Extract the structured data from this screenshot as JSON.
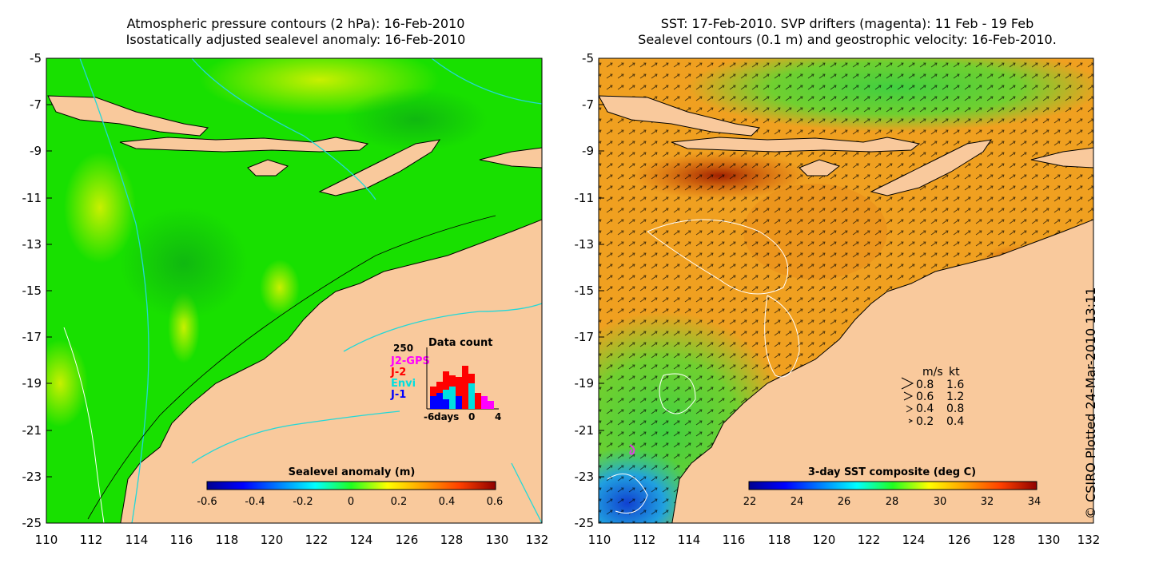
{
  "left_panel": {
    "title_line1": "Atmospheric pressure contours (2 hPa): 16-Feb-2010",
    "title_line2": "Isostatically adjusted sealevel anomaly: 16-Feb-2010",
    "colorbar": {
      "label": "Sealevel anomaly (m)",
      "ticks": [
        "-0.6",
        "-0.4",
        "-0.2",
        "0",
        "0.2",
        "0.4",
        "0.6"
      ]
    },
    "inset": {
      "title": "Data count",
      "ymax_label": "250",
      "xaxis_label": "days",
      "xticks": [
        "-6",
        "0",
        "4"
      ],
      "legend": [
        {
          "label": "J2-GPS",
          "color": "#ff00ff"
        },
        {
          "label": "J-2",
          "color": "#ff0000"
        },
        {
          "label": "Envi",
          "color": "#00e0e0"
        },
        {
          "label": "J-1",
          "color": "#0000ff"
        }
      ],
      "colors": {
        "J2-GPS": "#ff00ff",
        "J-2": "#ff0000",
        "Envi": "#00e0e0",
        "J-1": "#0000ff"
      }
    }
  },
  "right_panel": {
    "title_line1": "SST: 17-Feb-2010. SVP drifters (magenta): 11 Feb - 19 Feb",
    "title_line2": "Sealevel contours (0.1 m) and geostrophic velocity: 16-Feb-2010.",
    "colorbar": {
      "label": "3-day SST composite (deg C)",
      "ticks": [
        "22",
        "24",
        "26",
        "28",
        "30",
        "32",
        "34"
      ]
    },
    "speed_legend": {
      "header_ms": "m/s",
      "header_kt": "kt",
      "rows": [
        {
          "ms": "0.8",
          "kt": "1.6"
        },
        {
          "ms": "0.6",
          "kt": "1.2"
        },
        {
          "ms": "0.4",
          "kt": "0.8"
        },
        {
          "ms": "0.2",
          "kt": "0.4"
        }
      ]
    }
  },
  "axes": {
    "lat_ticks": [
      "-5",
      "-7",
      "-9",
      "-11",
      "-13",
      "-15",
      "-17",
      "-19",
      "-21",
      "-23",
      "-25"
    ],
    "lon_ticks": [
      "110",
      "112",
      "114",
      "116",
      "118",
      "120",
      "122",
      "124",
      "126",
      "128",
      "130",
      "132"
    ],
    "lat_range": [
      -25,
      -5
    ],
    "lon_range": [
      110,
      132
    ]
  },
  "credit": "© CSIRO Plotted 24-Mar-2010 13:11",
  "colors": {
    "land": "#f9c99c",
    "sea_green": "#18e000",
    "contour_cyan": "#22d8d8",
    "drifter": "#e040e0"
  }
}
